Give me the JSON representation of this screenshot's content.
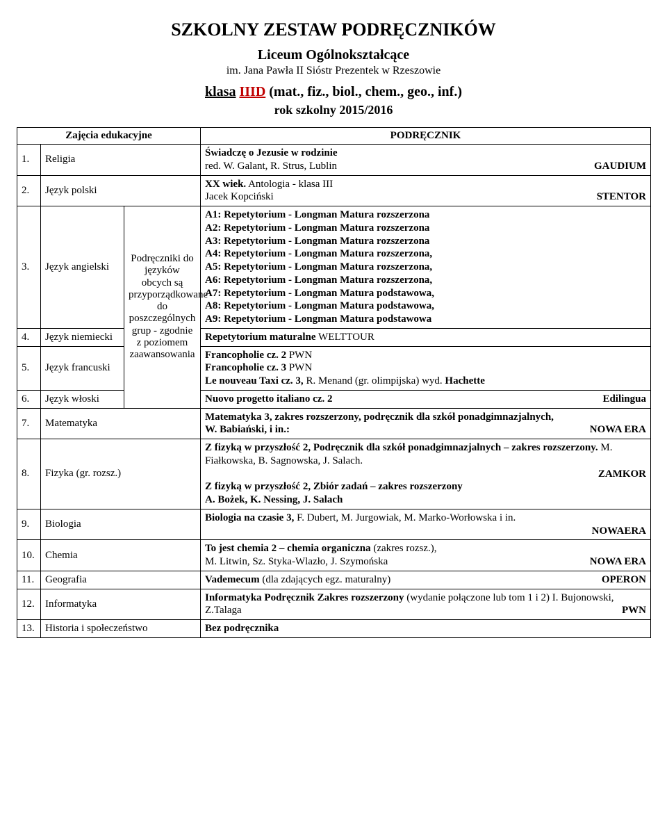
{
  "header": {
    "title": "SZKOLNY ZESTAW PODRĘCZNIKÓW",
    "subtitle": "Liceum Ogólnokształcące",
    "school": "im. Jana Pawła II Sióstr Prezentek w Rzeszowie",
    "class_prefix": "klasa",
    "class_code": "IIID",
    "class_suffix": "(mat., fiz., biol., chem., geo., inf.)",
    "year": "rok szkolny 2015/2016"
  },
  "columns": {
    "left": "Zajęcia edukacyjne",
    "right": "PODRĘCZNIK"
  },
  "group_note": "Podręczniki do języków obcych są przyporządkowane do poszczególnych grup - zgodnie z poziomem zaawansowania",
  "rows": {
    "r1_num": "1.",
    "r1_subject": "Religia",
    "r1_line1_bold": "Świadczę o Jezusie w rodzinie",
    "r1_line2": "red. W. Galant, R. Strus, Lublin",
    "r1_pub": "GAUDIUM",
    "r2_num": "2.",
    "r2_subject": "Język polski",
    "r2_line1_bold": "XX wiek.",
    "r2_line1_rest": " Antologia - klasa III",
    "r2_line2": "Jacek Kopciński",
    "r2_pub": "STENTOR",
    "r3_num": "3.",
    "r3_subject": "Język angielski",
    "r3_l1": "A1: Repetytorium - Longman Matura rozszerzona",
    "r3_l2": "A2: Repetytorium - Longman Matura rozszerzona",
    "r3_l3": "A3: Repetytorium - Longman Matura rozszerzona",
    "r3_l4": "A4: Repetytorium - Longman Matura rozszerzona,",
    "r3_l5": "A5: Repetytorium - Longman Matura rozszerzona,",
    "r3_l6": "A6: Repetytorium - Longman Matura rozszerzona,",
    "r3_l7": "A7: Repetytorium - Longman Matura podstawowa,",
    "r3_l8": "A8: Repetytorium - Longman Matura podstawowa,",
    "r3_l9": "A9: Repetytorium - Longman Matura podstawowa",
    "r4_num": "4.",
    "r4_subject": "Język niemiecki",
    "r4_bold": "Repetytorium maturalne",
    "r4_rest": " WELTTOUR",
    "r5_num": "5.",
    "r5_subject": "Język francuski",
    "r5_l1_bold": "Francopholie cz. 2",
    "r5_l1_rest": " PWN",
    "r5_l2_bold": "Francopholie cz. 3",
    "r5_l2_rest": " PWN",
    "r5_l3_bold": "Le nouveau Taxi cz. 3,",
    "r5_l3_rest": " R. Menand (gr. olimpijska)    wyd. ",
    "r5_l3_pub": "Hachette",
    "r6_num": "6.",
    "r6_subject": "Język włoski",
    "r6_bold": "Nuovo progetto italiano cz. 2",
    "r6_pub": "Edilingua",
    "r7_num": "7.",
    "r7_subject": "Matematyka",
    "r7_l1_bold": "Matematyka 3, zakres rozszerzony, podręcznik dla szkół ponadgimnazjalnych,",
    "r7_l1_rest": "W. Babiański, i in.:",
    "r7_pub": "NOWA ERA",
    "r8_num": "8.",
    "r8_subject": "Fizyka (gr. rozsz.)",
    "r8_l1_bold": "Z fizyką w przyszłość 2, Podręcznik dla szkół ponadgimnazjalnych – zakres rozszerzony.",
    "r8_l1_rest": " M. Fiałkowska, B. Sagnowska, J. Salach.",
    "r8_pub1": "ZAMKOR",
    "r8_l2_bold": "Z fizyką w przyszłość 2, Zbiór zadań – zakres rozszerzony",
    "r8_l3_bold": "A. Bożek, K. Nessing, J. Salach",
    "r9_num": "9.",
    "r9_subject": "Biologia",
    "r9_l1_bold": "Biologia na czasie 3, ",
    "r9_l1_rest": "F. Dubert, M. Jurgowiak, M. Marko-Worłowska i in.",
    "r9_pub": "NOWAERA",
    "r10_num": "10.",
    "r10_subject": "Chemia",
    "r10_l1_bold": "To jest chemia 2 – chemia organiczna",
    "r10_l1_rest": " (zakres rozsz.),",
    "r10_l2": " M. Litwin, Sz. Styka-Wlazło, J. Szymońska",
    "r10_pub": "NOWA ERA",
    "r11_num": "11.",
    "r11_subject": "Geografia",
    "r11_bold": "Vademecum",
    "r11_rest": " (dla zdających egz. maturalny)",
    "r11_pub": "OPERON",
    "r12_num": "12.",
    "r12_subject": "Informatyka",
    "r12_l1_bold": "Informatyka Podręcznik Zakres rozszerzony",
    "r12_l1_rest": " (wydanie połączone lub tom 1 i 2) I. Bujonowski, Z.Talaga",
    "r12_pub": "PWN",
    "r13_num": "13.",
    "r13_subject": "Historia i społeczeństwo",
    "r13_bold": "Bez podręcznika"
  },
  "style": {
    "background": "#ffffff",
    "text_color": "#000000",
    "accent_red": "#c00000",
    "border_color": "#000000",
    "title_fontsize": 26,
    "subtitle_fontsize": 20,
    "body_fontsize": 15,
    "group_note_fontsize": 12,
    "font_family": "Times New Roman"
  }
}
